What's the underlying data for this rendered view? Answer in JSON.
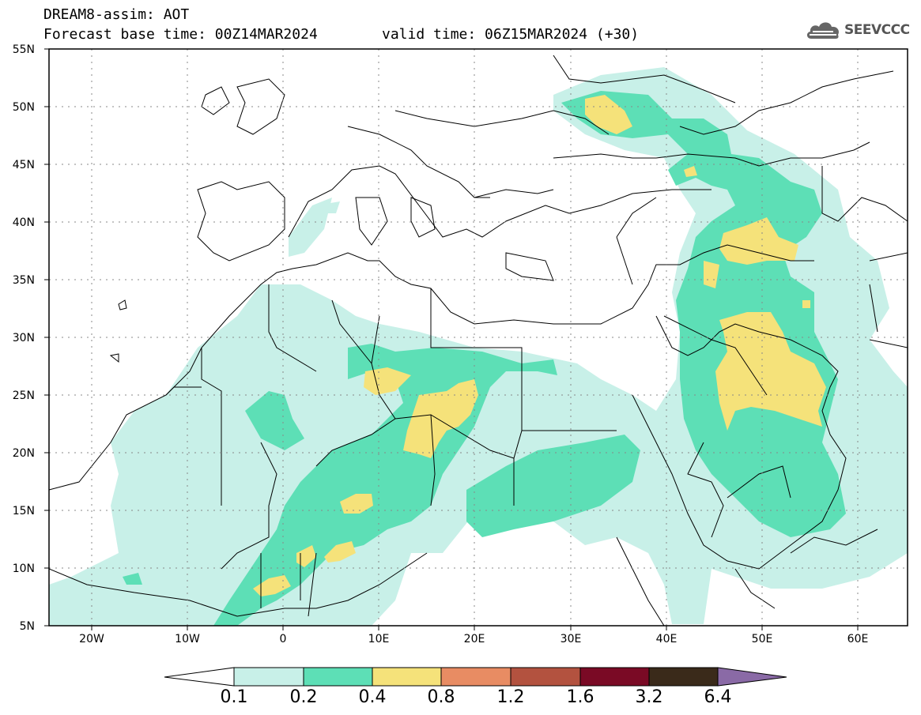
{
  "header": {
    "title": "DREAM8-assim: AOT",
    "base_time": "Forecast base time: 00Z14MAR2024",
    "valid_time": "valid time: 06Z15MAR2024 (+30)",
    "logo_text": "SEEVCCC"
  },
  "map": {
    "lat_labels": [
      "55N",
      "50N",
      "45N",
      "40N",
      "35N",
      "30N",
      "25N",
      "20N",
      "15N",
      "10N",
      "5N"
    ],
    "lon_labels": [
      "20W",
      "10W",
      "0",
      "10E",
      "20E",
      "30E",
      "40E",
      "50E",
      "60E"
    ],
    "lat_range": [
      5,
      55
    ],
    "lon_range": [
      -25,
      65
    ],
    "grid": "dotted",
    "variable": "Aerosol optical thickness"
  },
  "colorbar": {
    "labels": [
      "0.1",
      "0.2",
      "0.4",
      "0.8",
      "1.2",
      "1.6",
      "3.2",
      "6.4"
    ],
    "colors": [
      "#c8f0e8",
      "#5ddfb6",
      "#f5e27a",
      "#e88c63",
      "#b3523f",
      "#7a0a25",
      "#3a2a1a",
      "#8a6aa6"
    ]
  },
  "icons": {
    "logo": "cloud-logo-icon"
  }
}
